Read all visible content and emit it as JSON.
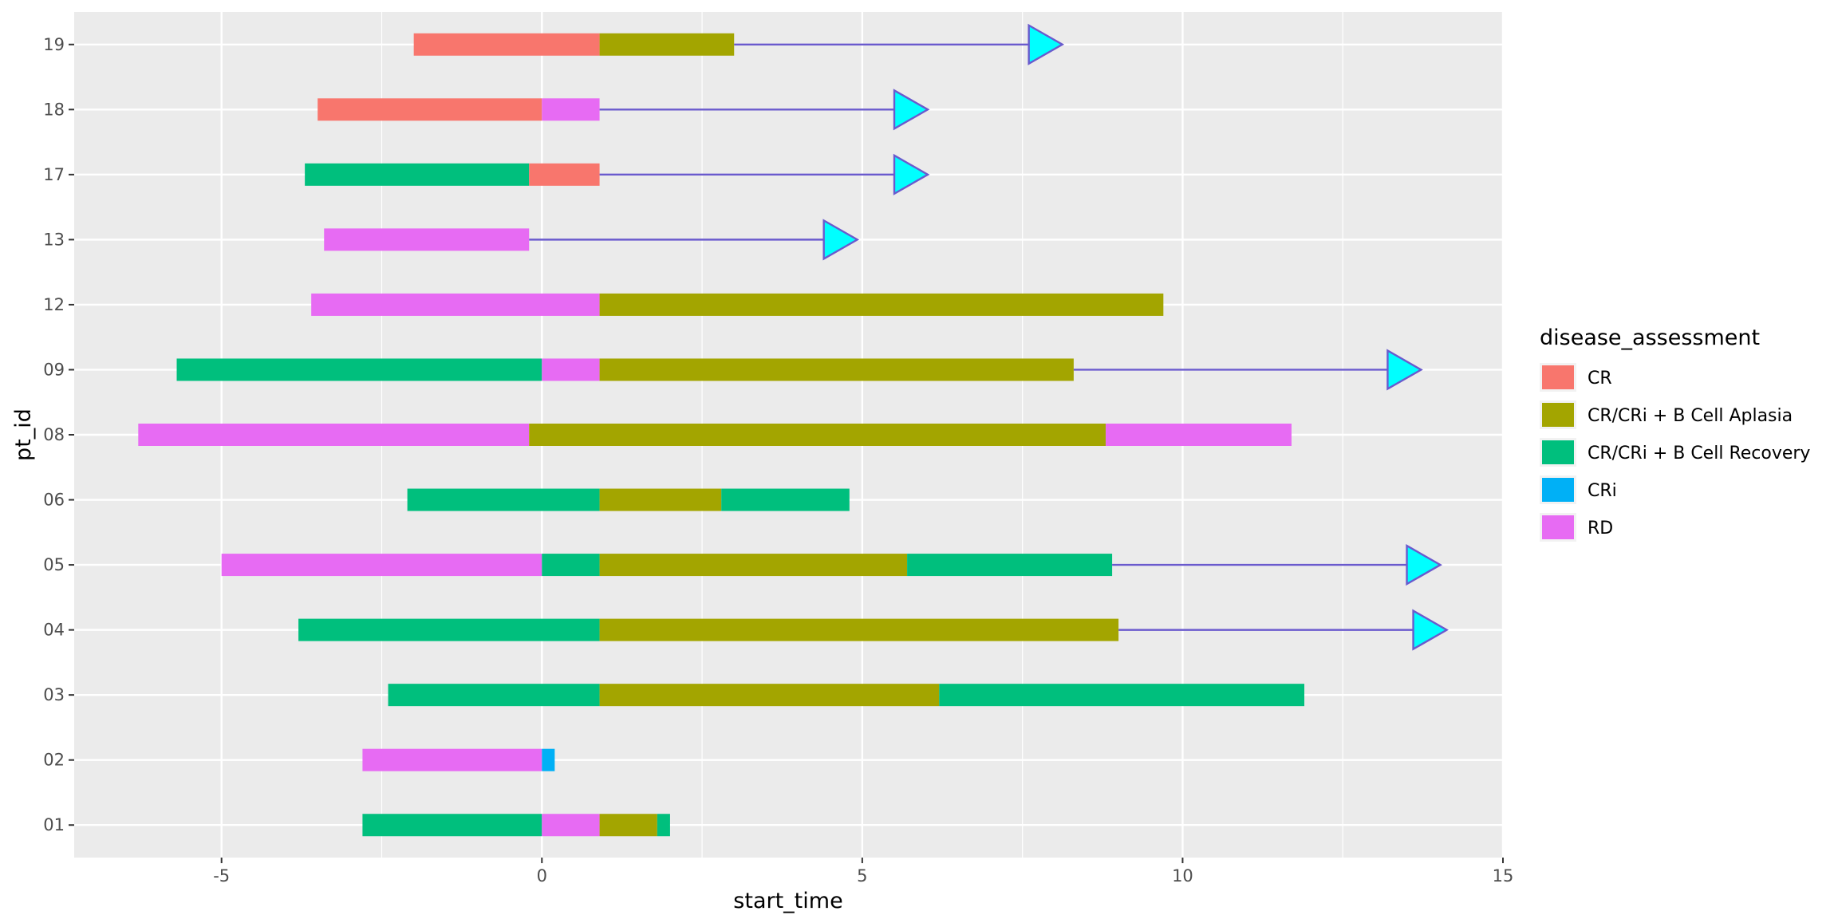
{
  "chart_data": {
    "type": "bar",
    "orientation": "horizontal-swimlane",
    "xlabel": "start_time",
    "ylabel": "pt_id",
    "xlim": [
      -7.3,
      15
    ],
    "x_ticks": [
      -5,
      0,
      5,
      10,
      15
    ],
    "x_tick_labels": [
      "-5",
      "0",
      "5",
      "10",
      "15"
    ],
    "grid": true,
    "categories": [
      "01",
      "02",
      "03",
      "04",
      "05",
      "06",
      "08",
      "09",
      "12",
      "13",
      "17",
      "18",
      "19"
    ],
    "legend": {
      "title": "disease_assessment",
      "position": "right",
      "entries": [
        {
          "label": "CR",
          "color": "#F8766D"
        },
        {
          "label": "CR/CRi + B Cell Aplasia",
          "color": "#A3A500"
        },
        {
          "label": "CR/CRi + B Cell Recovery",
          "color": "#00BF7D"
        },
        {
          "label": "CRi",
          "color": "#00B0F6"
        },
        {
          "label": "RD",
          "color": "#E76BF3"
        }
      ]
    },
    "segments": [
      {
        "pt_id": "01",
        "start": -2.8,
        "end": 0,
        "status": "CR/CRi + B Cell Recovery"
      },
      {
        "pt_id": "01",
        "start": 0,
        "end": 0.9,
        "status": "RD"
      },
      {
        "pt_id": "01",
        "start": 0.9,
        "end": 1.8,
        "status": "CR/CRi + B Cell Aplasia"
      },
      {
        "pt_id": "01",
        "start": 1.8,
        "end": 2.0,
        "status": "CR/CRi + B Cell Recovery"
      },
      {
        "pt_id": "02",
        "start": -2.8,
        "end": 0,
        "status": "RD"
      },
      {
        "pt_id": "02",
        "start": 0,
        "end": 0.2,
        "status": "CRi"
      },
      {
        "pt_id": "03",
        "start": -2.4,
        "end": 0.9,
        "status": "CR/CRi + B Cell Recovery"
      },
      {
        "pt_id": "03",
        "start": 0.9,
        "end": 6.2,
        "status": "CR/CRi + B Cell Aplasia"
      },
      {
        "pt_id": "03",
        "start": 6.2,
        "end": 11.9,
        "status": "CR/CRi + B Cell Recovery"
      },
      {
        "pt_id": "04",
        "start": -3.8,
        "end": 0.9,
        "status": "CR/CRi + B Cell Recovery"
      },
      {
        "pt_id": "04",
        "start": 0.9,
        "end": 9.0,
        "status": "CR/CRi + B Cell Aplasia"
      },
      {
        "pt_id": "05",
        "start": -5.0,
        "end": 0,
        "status": "RD"
      },
      {
        "pt_id": "05",
        "start": 0,
        "end": 0.9,
        "status": "CR/CRi + B Cell Recovery"
      },
      {
        "pt_id": "05",
        "start": 0.9,
        "end": 5.7,
        "status": "CR/CRi + B Cell Aplasia"
      },
      {
        "pt_id": "05",
        "start": 5.7,
        "end": 8.9,
        "status": "CR/CRi + B Cell Recovery"
      },
      {
        "pt_id": "06",
        "start": -2.1,
        "end": 0.9,
        "status": "CR/CRi + B Cell Recovery"
      },
      {
        "pt_id": "06",
        "start": 0.9,
        "end": 2.8,
        "status": "CR/CRi + B Cell Aplasia"
      },
      {
        "pt_id": "06",
        "start": 2.8,
        "end": 4.8,
        "status": "CR/CRi + B Cell Recovery"
      },
      {
        "pt_id": "08",
        "start": -6.3,
        "end": -0.2,
        "status": "RD"
      },
      {
        "pt_id": "08",
        "start": -0.2,
        "end": 8.8,
        "status": "CR/CRi + B Cell Aplasia"
      },
      {
        "pt_id": "08",
        "start": 8.8,
        "end": 11.7,
        "status": "RD"
      },
      {
        "pt_id": "09",
        "start": -5.7,
        "end": 0,
        "status": "CR/CRi + B Cell Recovery"
      },
      {
        "pt_id": "09",
        "start": 0,
        "end": 0.9,
        "status": "RD"
      },
      {
        "pt_id": "09",
        "start": 0.9,
        "end": 8.3,
        "status": "CR/CRi + B Cell Aplasia"
      },
      {
        "pt_id": "12",
        "start": -3.6,
        "end": 0.9,
        "status": "RD"
      },
      {
        "pt_id": "12",
        "start": 0.9,
        "end": 9.7,
        "status": "CR/CRi + B Cell Aplasia"
      },
      {
        "pt_id": "13",
        "start": -3.4,
        "end": -0.2,
        "status": "RD"
      },
      {
        "pt_id": "17",
        "start": -3.7,
        "end": -0.2,
        "status": "CR/CRi + B Cell Recovery"
      },
      {
        "pt_id": "17",
        "start": -0.2,
        "end": 0.9,
        "status": "CR"
      },
      {
        "pt_id": "18",
        "start": -3.5,
        "end": 0,
        "status": "CR"
      },
      {
        "pt_id": "18",
        "start": 0,
        "end": 0.9,
        "status": "RD"
      },
      {
        "pt_id": "19",
        "start": -2.0,
        "end": 0.9,
        "status": "CR"
      },
      {
        "pt_id": "19",
        "start": 0.9,
        "end": 3.0,
        "status": "CR/CRi + B Cell Aplasia"
      }
    ],
    "arrows": [
      {
        "pt_id": "04",
        "from": 9.0,
        "to": 13.6
      },
      {
        "pt_id": "05",
        "from": 8.9,
        "to": 13.5
      },
      {
        "pt_id": "09",
        "from": 8.3,
        "to": 13.2
      },
      {
        "pt_id": "13",
        "from": -0.2,
        "to": 4.4
      },
      {
        "pt_id": "17",
        "from": 0.9,
        "to": 5.5
      },
      {
        "pt_id": "18",
        "from": 0.9,
        "to": 5.5
      },
      {
        "pt_id": "19",
        "from": 3.0,
        "to": 7.6
      }
    ],
    "arrow_line_color": "#6A5ACD",
    "arrow_head_color": "#00FFFF",
    "panel_background": "#EBEBEB",
    "grid_color": "#FFFFFF"
  }
}
